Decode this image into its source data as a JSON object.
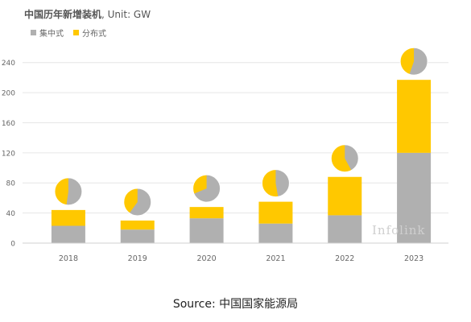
{
  "chart_data": {
    "type": "bar",
    "stacked": true,
    "title": "中国历年新增装机",
    "unit_label": ", Unit: GW",
    "categories": [
      "2018",
      "2019",
      "2020",
      "2021",
      "2022",
      "2023"
    ],
    "series": [
      {
        "name": "集中式",
        "color": "#b0b0b0",
        "values": [
          23,
          18,
          33,
          26,
          37,
          120
        ]
      },
      {
        "name": "分布式",
        "color": "#ffc800",
        "values": [
          21,
          12,
          15,
          29,
          51,
          97
        ]
      }
    ],
    "ylim": [
      0,
      260
    ],
    "yticks": [
      0,
      40,
      80,
      120,
      160,
      200,
      240
    ],
    "legend_position": "top-left",
    "grid": true,
    "xlabel": "",
    "ylabel": "",
    "pie_annotation": "small pie above each bar shows the 分布式 / 集中式 share"
  },
  "watermark": "Infolink",
  "source": "Source: 中国国家能源局"
}
